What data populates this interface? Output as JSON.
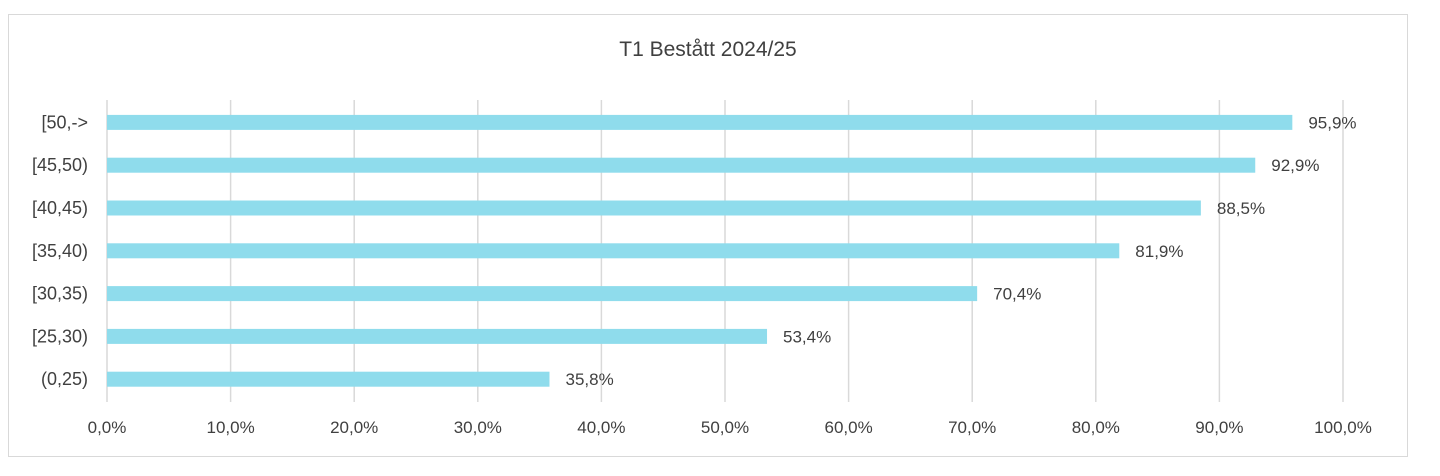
{
  "chart_data": {
    "type": "bar",
    "orientation": "horizontal",
    "title": "T1 Bestått 2024/25",
    "categories": [
      "[50,->",
      "[45,50)",
      "[40,45)",
      "[35,40)",
      "[30,35)",
      "[25,30)",
      "(0,25)"
    ],
    "values": [
      95.9,
      92.9,
      88.5,
      81.9,
      70.4,
      53.4,
      35.8
    ],
    "data_labels": [
      "95,9%",
      "92,9%",
      "88,5%",
      "81,9%",
      "70,4%",
      "53,4%",
      "35,8%"
    ],
    "xlim": [
      0,
      100
    ],
    "x_ticks": [
      0,
      10,
      20,
      30,
      40,
      50,
      60,
      70,
      80,
      90,
      100
    ],
    "x_tick_labels": [
      "0,0%",
      "10,0%",
      "20,0%",
      "30,0%",
      "40,0%",
      "50,0%",
      "60,0%",
      "70,0%",
      "80,0%",
      "90,0%",
      "100,0%"
    ],
    "grid": true,
    "legend": "none",
    "colors": {
      "bar": "#8fdcec",
      "grid": "#d9d9d9",
      "text": "#404040"
    }
  }
}
